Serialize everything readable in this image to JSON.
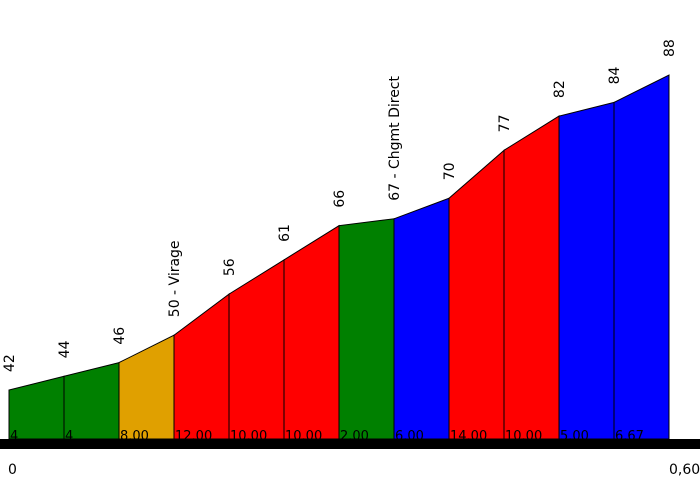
{
  "chart_data": {
    "type": "area",
    "xlim": [
      0,
      0.6
    ],
    "x_tick_labels": [
      "0",
      "0,60"
    ],
    "segments": [
      {
        "alt_start": 42,
        "alt_end": 44,
        "grade": "4",
        "color": "#008000"
      },
      {
        "alt_start": 44,
        "alt_end": 46,
        "grade": "4",
        "color": "#008000"
      },
      {
        "alt_start": 46,
        "alt_end": 50,
        "grade": "8.00",
        "color": "#e0a000"
      },
      {
        "alt_start": 50,
        "alt_end": 56,
        "grade": "12.00",
        "color": "#ff0000"
      },
      {
        "alt_start": 56,
        "alt_end": 61,
        "grade": "10.00",
        "color": "#ff0000"
      },
      {
        "alt_start": 61,
        "alt_end": 66,
        "grade": "10.00",
        "color": "#ff0000"
      },
      {
        "alt_start": 66,
        "alt_end": 67,
        "grade": "2.00",
        "color": "#008000"
      },
      {
        "alt_start": 67,
        "alt_end": 70,
        "grade": "6.00",
        "color": "#0000ff"
      },
      {
        "alt_start": 70,
        "alt_end": 77,
        "grade": "14.00",
        "color": "#ff0000"
      },
      {
        "alt_start": 77,
        "alt_end": 82,
        "grade": "10.00",
        "color": "#ff0000"
      },
      {
        "alt_start": 82,
        "alt_end": 84,
        "grade": "5.00",
        "color": "#0000ff"
      },
      {
        "alt_start": 84,
        "alt_end": 88,
        "grade": "6.67",
        "color": "#0000ff"
      }
    ],
    "altitude_labels": [
      "42",
      "44",
      "46",
      "50 - Virage",
      "56",
      "61",
      "66",
      "67 - Chgmt Direct",
      "70",
      "77",
      "82",
      "84",
      "88"
    ]
  }
}
